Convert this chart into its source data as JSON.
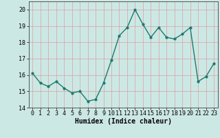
{
  "x": [
    0,
    1,
    2,
    3,
    4,
    5,
    6,
    7,
    8,
    9,
    10,
    11,
    12,
    13,
    14,
    15,
    16,
    17,
    18,
    19,
    20,
    21,
    22,
    23
  ],
  "y": [
    16.1,
    15.5,
    15.3,
    15.6,
    15.2,
    14.9,
    15.0,
    14.4,
    14.5,
    15.5,
    16.9,
    18.4,
    18.9,
    20.0,
    19.1,
    18.3,
    18.9,
    18.3,
    18.2,
    18.5,
    18.9,
    15.6,
    15.9,
    16.7
  ],
  "line_color": "#1a7a6e",
  "marker": "o",
  "marker_size": 2,
  "linewidth": 1.0,
  "xlabel": "Humidex (Indice chaleur)",
  "ylim": [
    14,
    20.5
  ],
  "xlim": [
    -0.5,
    23.5
  ],
  "yticks": [
    14,
    15,
    16,
    17,
    18,
    19,
    20
  ],
  "xticks": [
    0,
    1,
    2,
    3,
    4,
    5,
    6,
    7,
    8,
    9,
    10,
    11,
    12,
    13,
    14,
    15,
    16,
    17,
    18,
    19,
    20,
    21,
    22,
    23
  ],
  "bg_color": "#cce8e4",
  "grid_color": "#d9a0a0",
  "tick_fontsize": 6,
  "xlabel_fontsize": 7,
  "xlabel_font": "monospace"
}
